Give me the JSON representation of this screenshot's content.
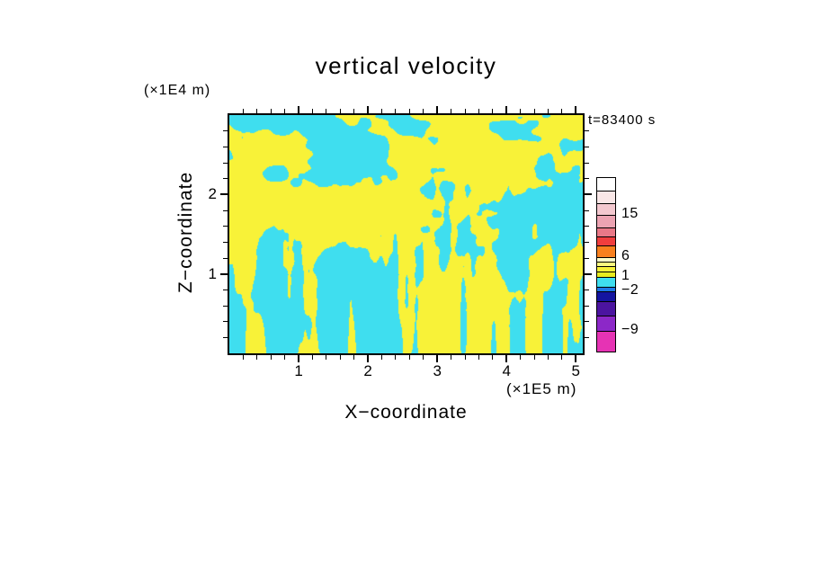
{
  "chart_data": {
    "type": "heatmap",
    "title": "vertical velocity",
    "annotation": "t=83400 s",
    "xlabel": "X−coordinate",
    "ylabel": "Z−coordinate",
    "x_units": "(×1E5 m)",
    "y_units": "(×1E4 m)",
    "x_ticks": [
      1,
      2,
      3,
      4,
      5
    ],
    "y_ticks": [
      1,
      2
    ],
    "xlim": [
      0,
      5.1
    ],
    "ylim": [
      0,
      3.0
    ],
    "minor_tick_step": 0.2,
    "grid": false,
    "legend_position": "right-colorbar",
    "colorbar": {
      "tick_labels": [
        {
          "text": "15",
          "y": 41
        },
        {
          "text": "6",
          "y": 88
        },
        {
          "text": "1",
          "y": 110
        },
        {
          "text": "−2",
          "y": 126
        },
        {
          "text": "−9",
          "y": 170
        }
      ],
      "segments": [
        {
          "color": "#FFFFFF",
          "h": 14
        },
        {
          "color": "#F9E7E7",
          "h": 14
        },
        {
          "color": "#F3C8CF",
          "h": 13
        },
        {
          "color": "#ECA3B2",
          "h": 14
        },
        {
          "color": "#E97887",
          "h": 10
        },
        {
          "color": "#F03E3E",
          "h": 10
        },
        {
          "color": "#F8801E",
          "h": 13
        },
        {
          "color": "#FDFDC8",
          "h": 5
        },
        {
          "color": "#FBF97E",
          "h": 5
        },
        {
          "color": "#F8F238",
          "h": 6
        },
        {
          "color": "#E8EC1E",
          "h": 6
        },
        {
          "color": "#3FDEEF",
          "h": 11
        },
        {
          "color": "#1E78E6",
          "h": 5
        },
        {
          "color": "#1414A0",
          "h": 11
        },
        {
          "color": "#4B14A0",
          "h": 16
        },
        {
          "color": "#8C28C8",
          "h": 17
        },
        {
          "color": "#E633B4",
          "h": 23
        }
      ]
    },
    "field": {
      "description": "two-level filled contour of vertical velocity: yellow = positive (updraft), cyan = negative (downdraft); turbulent blobs aloft with fine vertical streaks near the lower boundary",
      "positive_color": "#F8F238",
      "negative_color": "#3FDEEF",
      "seed": 1337
    }
  }
}
